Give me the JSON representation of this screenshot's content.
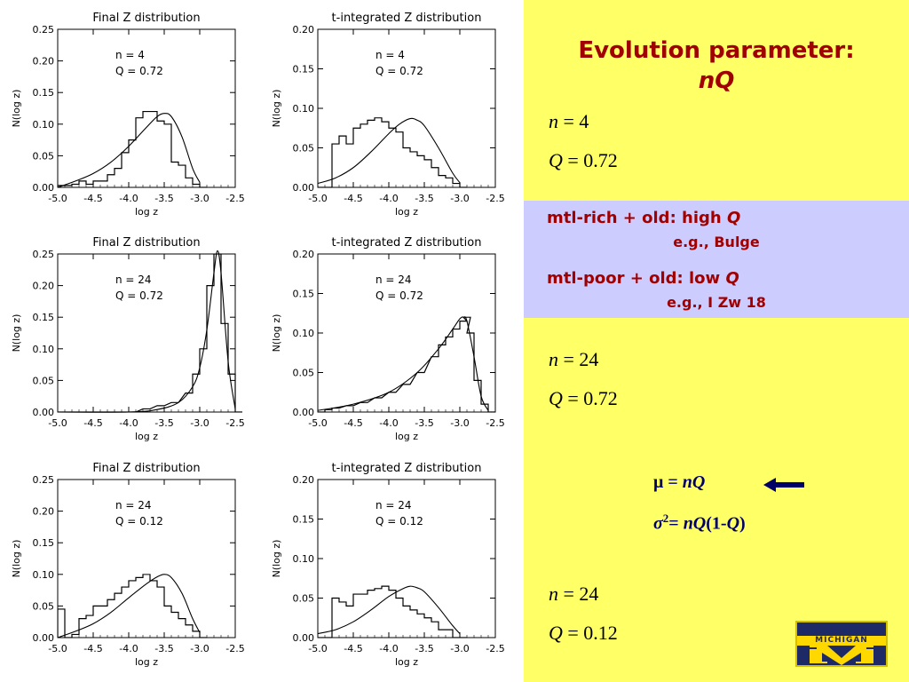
{
  "chart_data": [
    {
      "type": "line",
      "title": "Final Z distribution",
      "xlabel": "log z",
      "ylabel": "N(log z)",
      "xlim": [
        -5.0,
        -2.5
      ],
      "ylim": [
        0,
        0.25
      ],
      "xticks": [
        "-5.0",
        "-4.5",
        "-4.0",
        "-3.5",
        "-3.0",
        "-2.5"
      ],
      "yticks": [
        "0.00",
        "0.05",
        "0.10",
        "0.15",
        "0.20",
        "0.25"
      ],
      "annotation": [
        "n = 4",
        "Q = 0.72"
      ],
      "series": [
        {
          "x": [
            -5.0,
            -4.9,
            -4.8,
            -4.7,
            -4.6,
            -4.5,
            -4.4,
            -4.3,
            -4.2,
            -4.1,
            -4.0,
            -3.9,
            -3.8,
            -3.7,
            -3.6,
            -3.5,
            -3.4,
            -3.3,
            -3.2,
            -3.1,
            -3.0
          ],
          "values": [
            0.003,
            0.003,
            0.005,
            0.01,
            0.005,
            0.01,
            0.01,
            0.02,
            0.03,
            0.055,
            0.075,
            0.11,
            0.12,
            0.12,
            0.105,
            0.1,
            0.04,
            0.035,
            0.015,
            0.005,
            0.0
          ]
        },
        {
          "x": [
            -5.0,
            -4.75,
            -4.5,
            -4.25,
            -4.0,
            -3.75,
            -3.6,
            -3.5,
            -3.4,
            -3.25,
            -3.1,
            -3.0
          ],
          "values": [
            0.0,
            0.01,
            0.022,
            0.04,
            0.065,
            0.095,
            0.112,
            0.117,
            0.112,
            0.08,
            0.03,
            0.008
          ]
        }
      ]
    },
    {
      "type": "line",
      "title": "t-integrated Z distribution",
      "xlabel": "log z",
      "ylabel": "N(log z)",
      "xlim": [
        -5.0,
        -2.5
      ],
      "ylim": [
        0,
        0.2
      ],
      "xticks": [
        "-5.0",
        "-4.5",
        "-4.0",
        "-3.5",
        "-3.0",
        "-2.5"
      ],
      "yticks": [
        "0.00",
        "0.05",
        "0.10",
        "0.15",
        "0.20"
      ],
      "annotation": [
        "n = 4",
        "Q = 0.72"
      ],
      "series": [
        {
          "x": [
            -5.0,
            -4.9,
            -4.8,
            -4.7,
            -4.6,
            -4.5,
            -4.4,
            -4.3,
            -4.2,
            -4.1,
            -4.0,
            -3.9,
            -3.8,
            -3.7,
            -3.6,
            -3.5,
            -3.4,
            -3.3,
            -3.2,
            -3.1,
            -3.0
          ],
          "values": [
            0.0,
            0.0,
            0.055,
            0.065,
            0.055,
            0.075,
            0.08,
            0.085,
            0.088,
            0.083,
            0.075,
            0.07,
            0.05,
            0.045,
            0.04,
            0.035,
            0.025,
            0.015,
            0.012,
            0.005,
            0.0
          ]
        },
        {
          "x": [
            -5.0,
            -4.75,
            -4.5,
            -4.25,
            -4.0,
            -3.85,
            -3.7,
            -3.6,
            -3.5,
            -3.3,
            -3.1,
            -3.0
          ],
          "values": [
            0.005,
            0.012,
            0.025,
            0.045,
            0.068,
            0.08,
            0.087,
            0.085,
            0.078,
            0.05,
            0.018,
            0.006
          ]
        }
      ]
    },
    {
      "type": "line",
      "title": "Final Z distribution",
      "xlabel": "log z",
      "ylabel": "N(log z)",
      "xlim": [
        -5.0,
        -2.5
      ],
      "ylim": [
        0,
        0.25
      ],
      "xticks": [
        "-5.0",
        "-4.5",
        "-4.0",
        "-3.5",
        "-3.0",
        "-2.5"
      ],
      "yticks": [
        "0.00",
        "0.05",
        "0.10",
        "0.15",
        "0.20",
        "0.25"
      ],
      "annotation": [
        "n = 24",
        "Q = 0.72"
      ],
      "series": [
        {
          "x": [
            -5.0,
            -4.5,
            -4.0,
            -3.8,
            -3.6,
            -3.4,
            -3.2,
            -3.1,
            -3.0,
            -2.9,
            -2.8,
            -2.7,
            -2.6,
            -2.5
          ],
          "values": [
            0.0,
            0.0,
            0.0,
            0.005,
            0.01,
            0.015,
            0.03,
            0.06,
            0.1,
            0.2,
            0.25,
            0.14,
            0.06,
            0.0
          ]
        },
        {
          "x": [
            -5.0,
            -4.0,
            -3.6,
            -3.3,
            -3.1,
            -3.0,
            -2.9,
            -2.8,
            -2.75,
            -2.7,
            -2.6,
            -2.5
          ],
          "values": [
            0.0,
            0.0,
            0.004,
            0.015,
            0.04,
            0.07,
            0.13,
            0.22,
            0.255,
            0.22,
            0.08,
            0.005
          ]
        }
      ]
    },
    {
      "type": "line",
      "title": "t-integrated Z distribution",
      "xlabel": "log z",
      "ylabel": "N(log z)",
      "xlim": [
        -5.0,
        -2.5
      ],
      "ylim": [
        0,
        0.2
      ],
      "xticks": [
        "-5.0",
        "-4.5",
        "-4.0",
        "-3.5",
        "-3.0",
        "-2.5"
      ],
      "yticks": [
        "0.00",
        "0.05",
        "0.10",
        "0.15",
        "0.20"
      ],
      "annotation": [
        "n = 24",
        "Q = 0.72"
      ],
      "series": [
        {
          "x": [
            -5.0,
            -4.9,
            -4.8,
            -4.6,
            -4.4,
            -4.2,
            -4.0,
            -3.8,
            -3.6,
            -3.4,
            -3.3,
            -3.2,
            -3.1,
            -3.0,
            -2.95,
            -2.9,
            -2.8,
            -2.7,
            -2.6
          ],
          "values": [
            0.0,
            0.003,
            0.005,
            0.008,
            0.012,
            0.018,
            0.025,
            0.035,
            0.05,
            0.07,
            0.085,
            0.095,
            0.105,
            0.115,
            0.12,
            0.1,
            0.04,
            0.01,
            0.0
          ]
        },
        {
          "x": [
            -5.0,
            -4.5,
            -4.0,
            -3.6,
            -3.3,
            -3.1,
            -3.0,
            -2.95,
            -2.9,
            -2.8,
            -2.7,
            -2.6
          ],
          "values": [
            0.002,
            0.01,
            0.025,
            0.05,
            0.08,
            0.105,
            0.118,
            0.12,
            0.115,
            0.07,
            0.02,
            0.002
          ]
        }
      ]
    },
    {
      "type": "line",
      "title": "Final Z distribution",
      "xlabel": "log z",
      "ylabel": "N(log z)",
      "xlim": [
        -5.0,
        -2.5
      ],
      "ylim": [
        0,
        0.25
      ],
      "xticks": [
        "-5.0",
        "-4.5",
        "-4.0",
        "-3.5",
        "-3.0",
        "-2.5"
      ],
      "yticks": [
        "0.00",
        "0.05",
        "0.10",
        "0.15",
        "0.20",
        "0.25"
      ],
      "annotation": [
        "n = 24",
        "Q = 0.12"
      ],
      "series": [
        {
          "x": [
            -5.0,
            -4.9,
            -4.8,
            -4.7,
            -4.6,
            -4.5,
            -4.4,
            -4.3,
            -4.2,
            -4.1,
            -4.0,
            -3.9,
            -3.8,
            -3.7,
            -3.6,
            -3.5,
            -3.4,
            -3.3,
            -3.2,
            -3.1,
            -3.0
          ],
          "values": [
            0.045,
            0.0,
            0.005,
            0.03,
            0.035,
            0.05,
            0.05,
            0.06,
            0.07,
            0.08,
            0.09,
            0.095,
            0.1,
            0.09,
            0.08,
            0.05,
            0.04,
            0.03,
            0.02,
            0.01,
            0.0
          ]
        },
        {
          "x": [
            -5.0,
            -4.75,
            -4.5,
            -4.25,
            -4.0,
            -3.75,
            -3.6,
            -3.5,
            -3.4,
            -3.25,
            -3.1,
            -3.0
          ],
          "values": [
            0.0,
            0.01,
            0.022,
            0.04,
            0.063,
            0.085,
            0.096,
            0.1,
            0.095,
            0.07,
            0.03,
            0.008
          ]
        }
      ]
    },
    {
      "type": "line",
      "title": "t-integrated Z distribution",
      "xlabel": "log z",
      "ylabel": "N(log z)",
      "xlim": [
        -5.0,
        -2.5
      ],
      "ylim": [
        0,
        0.2
      ],
      "xticks": [
        "-5.0",
        "-4.5",
        "-4.0",
        "-3.5",
        "-3.0",
        "-2.5"
      ],
      "yticks": [
        "0.00",
        "0.05",
        "0.10",
        "0.15",
        "0.20"
      ],
      "annotation": [
        "n = 24",
        "Q = 0.12"
      ],
      "series": [
        {
          "x": [
            -5.0,
            -4.9,
            -4.8,
            -4.7,
            -4.6,
            -4.5,
            -4.4,
            -4.3,
            -4.2,
            -4.1,
            -4.0,
            -3.9,
            -3.8,
            -3.7,
            -3.6,
            -3.5,
            -3.4,
            -3.3,
            -3.2,
            -3.1,
            -3.0
          ],
          "values": [
            0.0,
            0.0,
            0.05,
            0.045,
            0.04,
            0.055,
            0.055,
            0.06,
            0.062,
            0.065,
            0.06,
            0.05,
            0.04,
            0.035,
            0.03,
            0.025,
            0.02,
            0.01,
            0.01,
            0.0,
            0.0
          ]
        },
        {
          "x": [
            -5.0,
            -4.75,
            -4.5,
            -4.25,
            -4.0,
            -3.8,
            -3.7,
            -3.6,
            -3.5,
            -3.3,
            -3.1,
            -3.0
          ],
          "values": [
            0.005,
            0.01,
            0.02,
            0.035,
            0.052,
            0.062,
            0.065,
            0.063,
            0.058,
            0.038,
            0.015,
            0.005
          ]
        }
      ]
    }
  ],
  "slide": {
    "title_line1": "Evolution parameter:",
    "title_line2": "nQ",
    "block1": {
      "n_label": "n",
      "n_value": "= 4",
      "q_label": "Q",
      "q_value": "= 0.72"
    },
    "band": {
      "line1_text": "mtl-rich + old:  high ",
      "line1_q": "Q",
      "line1_example": "e.g., Bulge",
      "line2_text": "mtl-poor + old:  low ",
      "line2_q": "Q",
      "line2_example": "e.g., I Zw 18"
    },
    "block2": {
      "n_label": "n",
      "n_value": "= 24",
      "q_label": "Q",
      "q_value": "= 0.72"
    },
    "mu_eq": {
      "sym": "μ",
      "rhs": "= ",
      "rhs_it": "nQ"
    },
    "sigma_eq": {
      "sym": "σ",
      "sup": "2",
      "rhs": "= ",
      "rhs_it": "nQ",
      "paren": "(1-",
      "paren_q": "Q",
      "paren_end": ")"
    },
    "block3": {
      "n_label": "n",
      "n_value": "= 24",
      "q_label": "Q",
      "q_value": "= 0.12"
    },
    "logo_word": "MICHIGAN",
    "colors": {
      "background": "#ffff66",
      "band": "#ccccff",
      "title": "#a00000",
      "math": "#000066"
    }
  }
}
